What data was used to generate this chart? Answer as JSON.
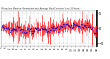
{
  "title": "Milwaukee Weather Normalized and Average Wind Direction (Last 24 Hours)",
  "n_points": 144,
  "y_min": -6,
  "y_max": 6,
  "background_color": "#ffffff",
  "grid_color": "#bbbbbb",
  "bar_color": "#ff0000",
  "dot_color": "#0000cc",
  "dot_size": 1.5,
  "yticks": [
    -5,
    0,
    5
  ],
  "seed": 7
}
